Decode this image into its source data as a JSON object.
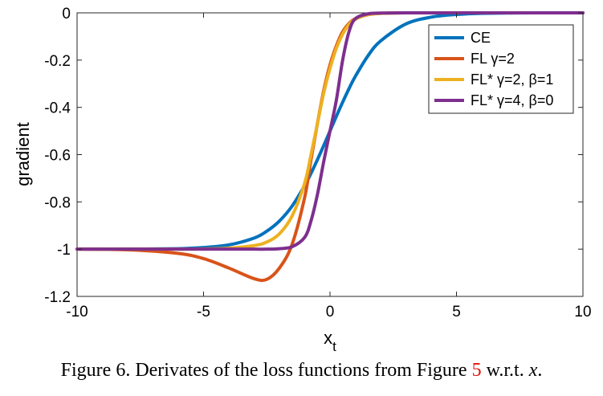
{
  "chart_data": {
    "type": "line",
    "xlabel": "x",
    "xlabel_sub": "t",
    "ylabel": "gradient",
    "xlim": [
      -10,
      10
    ],
    "ylim": [
      -1.2,
      0
    ],
    "xticks": [
      -10,
      -5,
      0,
      5,
      10
    ],
    "yticks": [
      0,
      -0.2,
      -0.4,
      -0.6,
      -0.8,
      -1,
      -1.2
    ],
    "xtick_labels": [
      "-10",
      "-5",
      "0",
      "5",
      "10"
    ],
    "ytick_labels": [
      "0",
      "-0.2",
      "-0.4",
      "-0.6",
      "-0.8",
      "-1",
      "-1.2"
    ],
    "grid": false,
    "legend_position": "top-right",
    "x": [
      -10,
      -8,
      -6,
      -5,
      -4,
      -3,
      -2.5,
      -2,
      -1.5,
      -1,
      -0.75,
      -0.5,
      -0.25,
      0,
      0.25,
      0.5,
      0.75,
      1,
      1.5,
      2,
      3,
      4,
      5,
      6,
      8,
      10
    ],
    "series": [
      {
        "name": "CE",
        "color": "#0072BD",
        "values": [
          -1.0,
          -1.0,
          -0.998,
          -0.993,
          -0.982,
          -0.953,
          -0.924,
          -0.881,
          -0.818,
          -0.731,
          -0.679,
          -0.622,
          -0.562,
          -0.5,
          -0.438,
          -0.378,
          -0.321,
          -0.269,
          -0.182,
          -0.119,
          -0.047,
          -0.018,
          -0.007,
          -0.002,
          0.0,
          0.0
        ]
      },
      {
        "name": "FL γ=2",
        "color": "#D95319",
        "values": [
          -1.0,
          -1.003,
          -1.018,
          -1.04,
          -1.08,
          -1.125,
          -1.128,
          -1.08,
          -0.98,
          -0.78,
          -0.62,
          -0.47,
          -0.33,
          -0.22,
          -0.14,
          -0.08,
          -0.045,
          -0.025,
          -0.008,
          -0.002,
          0.0,
          0.0,
          0.0,
          0.0,
          0.0,
          0.0
        ]
      },
      {
        "name": "FL* γ=2, β=1",
        "color": "#EDB120",
        "values": [
          -1.0,
          -1.0,
          -1.0,
          -0.999,
          -0.996,
          -0.985,
          -0.97,
          -0.935,
          -0.86,
          -0.72,
          -0.6,
          -0.47,
          -0.34,
          -0.235,
          -0.15,
          -0.09,
          -0.05,
          -0.027,
          -0.008,
          -0.002,
          0.0,
          0.0,
          0.0,
          0.0,
          0.0,
          0.0
        ]
      },
      {
        "name": "FL* γ=4, β=0",
        "color": "#7E2F8E",
        "values": [
          -1.0,
          -1.0,
          -1.0,
          -1.0,
          -1.0,
          -1.0,
          -1.0,
          -0.998,
          -0.99,
          -0.95,
          -0.88,
          -0.77,
          -0.63,
          -0.5,
          -0.37,
          -0.2,
          -0.08,
          -0.025,
          -0.004,
          -0.001,
          0.0,
          0.0,
          0.0,
          0.0,
          0.0,
          0.0
        ]
      }
    ]
  },
  "caption": {
    "prefix": "Figure 6. Derivates of the loss functions from Figure ",
    "ref": "5",
    "middle": " w.r.t. ",
    "math": "x",
    "suffix": "."
  }
}
